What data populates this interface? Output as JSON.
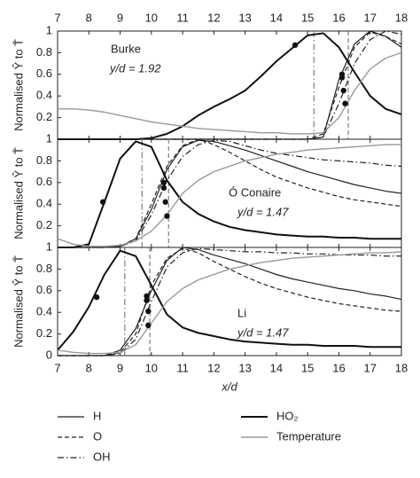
{
  "chart_data": [
    {
      "type": "line",
      "label": "Burke",
      "annotation": "y/d = 1.92",
      "ylabel": "Normalised Ŷ to T̄",
      "xlim": [
        7,
        18
      ],
      "xticks": [
        7,
        8,
        9,
        10,
        11,
        12,
        13,
        14,
        15,
        16,
        17,
        18
      ],
      "xaxis_labels": "top",
      "ylim": [
        0,
        1
      ],
      "yticks": [
        0.2,
        0.4,
        0.6,
        0.8,
        1
      ],
      "x": [
        7,
        7.5,
        8,
        8.5,
        9,
        9.5,
        10,
        10.5,
        11,
        11.5,
        12,
        12.5,
        13,
        13.5,
        14,
        14.5,
        15,
        15.5,
        16,
        16.5,
        17,
        17.5,
        18
      ],
      "series": [
        {
          "name": "H",
          "color": "#222222",
          "dash": "solid",
          "width": 1.2,
          "values": [
            0,
            0,
            0,
            0,
            0,
            0,
            0,
            0,
            0,
            0,
            0,
            0,
            0,
            0,
            0,
            0,
            0,
            0.02,
            0.55,
            0.88,
            1.0,
            0.95,
            0.85
          ]
        },
        {
          "name": "O",
          "color": "#222222",
          "dash": "dashed",
          "width": 1.2,
          "values": [
            0,
            0,
            0,
            0,
            0,
            0,
            0,
            0,
            0,
            0,
            0,
            0,
            0,
            0,
            0,
            0,
            0,
            0.05,
            0.48,
            0.85,
            0.99,
            0.95,
            0.88
          ]
        },
        {
          "name": "OH",
          "color": "#222222",
          "dash": "dashdot",
          "width": 1.2,
          "values": [
            0,
            0,
            0,
            0,
            0,
            0,
            0,
            0,
            0,
            0,
            0,
            0,
            0,
            0,
            0,
            0,
            0,
            0.02,
            0.33,
            0.7,
            0.92,
            1.0,
            0.97
          ]
        },
        {
          "name": "HO₂",
          "color": "#111111",
          "dash": "solid",
          "width": 2,
          "values": [
            0,
            0,
            0,
            0,
            0,
            0,
            0.01,
            0.05,
            0.12,
            0.22,
            0.3,
            0.37,
            0.45,
            0.58,
            0.72,
            0.84,
            0.96,
            0.98,
            0.85,
            0.62,
            0.4,
            0.28,
            0.23
          ]
        },
        {
          "name": "Temperature",
          "color": "#999999",
          "dash": "solid",
          "width": 1.4,
          "values": [
            0.28,
            0.28,
            0.27,
            0.25,
            0.22,
            0.19,
            0.16,
            0.14,
            0.12,
            0.1,
            0.09,
            0.08,
            0.07,
            0.06,
            0.06,
            0.05,
            0.05,
            0.06,
            0.2,
            0.45,
            0.65,
            0.75,
            0.8
          ]
        }
      ],
      "vlines": [
        {
          "x": 15.2,
          "dash": "dashdot"
        },
        {
          "x": 16.3,
          "dash": "dashed"
        }
      ],
      "markers": {
        "x": [
          14.6,
          16.1,
          16.1,
          16.15,
          16.2
        ],
        "y": [
          0.87,
          0.6,
          0.57,
          0.45,
          0.33
        ]
      }
    },
    {
      "type": "line",
      "label": "Ó Conaire",
      "annotation": "y/d = 1.47",
      "ylabel": "Normalised Ŷ to T̄",
      "xlim": [
        7,
        18
      ],
      "xticks": [
        7,
        8,
        9,
        10,
        11,
        12,
        13,
        14,
        15,
        16,
        17,
        18
      ],
      "ylim": [
        0,
        1
      ],
      "yticks": [
        0.2,
        0.4,
        0.6,
        0.8,
        1
      ],
      "x": [
        7,
        7.5,
        8,
        8.5,
        9,
        9.5,
        10,
        10.5,
        11,
        11.5,
        12,
        12.5,
        13,
        13.5,
        14,
        14.5,
        15,
        15.5,
        16,
        16.5,
        17,
        17.5,
        18
      ],
      "series": [
        {
          "name": "H",
          "color": "#222222",
          "dash": "solid",
          "width": 1.2,
          "values": [
            0,
            0,
            0,
            0,
            0.01,
            0.08,
            0.35,
            0.72,
            0.93,
            0.99,
            0.98,
            0.94,
            0.9,
            0.85,
            0.8,
            0.75,
            0.7,
            0.66,
            0.62,
            0.58,
            0.55,
            0.52,
            0.5
          ]
        },
        {
          "name": "O",
          "color": "#222222",
          "dash": "dashed",
          "width": 1.2,
          "values": [
            0,
            0,
            0,
            0,
            0.01,
            0.08,
            0.4,
            0.75,
            0.94,
            1.0,
            0.95,
            0.88,
            0.8,
            0.72,
            0.65,
            0.6,
            0.55,
            0.51,
            0.47,
            0.44,
            0.42,
            0.4,
            0.38
          ]
        },
        {
          "name": "OH",
          "color": "#222222",
          "dash": "dashdot",
          "width": 1.2,
          "values": [
            0,
            0,
            0,
            0,
            0.01,
            0.06,
            0.3,
            0.62,
            0.84,
            0.95,
            0.99,
            0.98,
            0.94,
            0.9,
            0.87,
            0.85,
            0.83,
            0.81,
            0.8,
            0.79,
            0.78,
            0.76,
            0.75
          ]
        },
        {
          "name": "HO₂",
          "color": "#111111",
          "dash": "solid",
          "width": 2,
          "values": [
            0,
            0,
            0.03,
            0.42,
            0.82,
            0.98,
            0.93,
            0.62,
            0.42,
            0.31,
            0.24,
            0.19,
            0.16,
            0.14,
            0.12,
            0.11,
            0.1,
            0.1,
            0.09,
            0.09,
            0.08,
            0.08,
            0.08
          ]
        },
        {
          "name": "Temperature",
          "color": "#999999",
          "dash": "solid",
          "width": 1.4,
          "values": [
            0.08,
            0.03,
            0.01,
            0.01,
            0.02,
            0.06,
            0.15,
            0.3,
            0.5,
            0.62,
            0.7,
            0.75,
            0.8,
            0.83,
            0.86,
            0.88,
            0.9,
            0.91,
            0.92,
            0.93,
            0.94,
            0.95,
            0.95
          ]
        }
      ],
      "vlines": [
        {
          "x": 9.7,
          "dash": "dashdot"
        },
        {
          "x": 10.55,
          "dash": "dashed"
        }
      ],
      "markers": {
        "x": [
          8.45,
          10.4,
          10.4,
          10.45,
          10.5
        ],
        "y": [
          0.42,
          0.6,
          0.55,
          0.42,
          0.29
        ]
      }
    },
    {
      "type": "line",
      "label": "Li",
      "annotation": "y/d = 1.47",
      "ylabel": "Normalised Ŷ to T̄",
      "xlabel": "x/d",
      "xlim": [
        7,
        18
      ],
      "xticks": [
        7,
        8,
        9,
        10,
        11,
        12,
        13,
        14,
        15,
        16,
        17,
        18
      ],
      "xaxis_labels": "bottom",
      "ylim": [
        0,
        1
      ],
      "yticks": [
        0,
        0.2,
        0.4,
        0.6,
        0.8,
        1
      ],
      "x": [
        7,
        7.5,
        8,
        8.5,
        9,
        9.5,
        10,
        10.5,
        11,
        11.5,
        12,
        12.5,
        13,
        13.5,
        14,
        14.5,
        15,
        15.5,
        16,
        16.5,
        17,
        17.5,
        18
      ],
      "series": [
        {
          "name": "H",
          "color": "#222222",
          "dash": "solid",
          "width": 1.2,
          "values": [
            0,
            0,
            0,
            0,
            0.05,
            0.25,
            0.6,
            0.88,
            1.0,
            0.98,
            0.93,
            0.89,
            0.85,
            0.8,
            0.75,
            0.71,
            0.68,
            0.65,
            0.62,
            0.6,
            0.57,
            0.55,
            0.52
          ]
        },
        {
          "name": "O",
          "color": "#222222",
          "dash": "dashed",
          "width": 1.2,
          "values": [
            0,
            0,
            0,
            0,
            0.03,
            0.2,
            0.65,
            0.9,
            0.99,
            0.95,
            0.87,
            0.8,
            0.73,
            0.67,
            0.62,
            0.58,
            0.54,
            0.51,
            0.48,
            0.46,
            0.44,
            0.42,
            0.41
          ]
        },
        {
          "name": "OH",
          "color": "#222222",
          "dash": "dashdot",
          "width": 1.2,
          "values": [
            0,
            0,
            0,
            0,
            0.02,
            0.15,
            0.5,
            0.82,
            0.95,
            0.99,
            0.98,
            0.97,
            0.96,
            0.96,
            0.95,
            0.95,
            0.94,
            0.94,
            0.93,
            0.93,
            0.93,
            0.92,
            0.92
          ]
        },
        {
          "name": "HO₂",
          "color": "#111111",
          "dash": "solid",
          "width": 2,
          "values": [
            0.05,
            0.22,
            0.45,
            0.75,
            0.97,
            0.92,
            0.65,
            0.38,
            0.26,
            0.21,
            0.18,
            0.15,
            0.13,
            0.12,
            0.11,
            0.1,
            0.1,
            0.09,
            0.09,
            0.09,
            0.08,
            0.08,
            0.08
          ]
        },
        {
          "name": "Temperature",
          "color": "#999999",
          "dash": "solid",
          "width": 1.4,
          "values": [
            0.05,
            0.03,
            0.02,
            0.02,
            0.03,
            0.1,
            0.3,
            0.5,
            0.62,
            0.7,
            0.75,
            0.8,
            0.83,
            0.86,
            0.88,
            0.9,
            0.91,
            0.92,
            0.93,
            0.94,
            0.95,
            0.95,
            0.96
          ]
        }
      ],
      "vlines": [
        {
          "x": 9.15,
          "dash": "dashdot"
        },
        {
          "x": 9.95,
          "dash": "dashed"
        }
      ],
      "markers": {
        "x": [
          8.25,
          9.85,
          9.85,
          9.9,
          9.9
        ],
        "y": [
          0.54,
          0.55,
          0.51,
          0.41,
          0.28
        ]
      }
    }
  ]
}
